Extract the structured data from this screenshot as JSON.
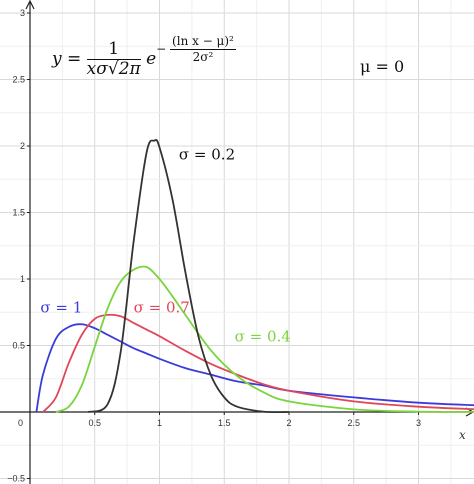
{
  "chart_data": {
    "type": "line",
    "title": "",
    "xlabel": "x",
    "ylabel": "",
    "xlim": [
      -0.25,
      3.45
    ],
    "ylim": [
      -0.5,
      3.05
    ],
    "grid": true,
    "x_ticks": [
      0.5,
      1,
      1.5,
      2,
      2.5,
      3
    ],
    "x_tick_labels": [
      "0.5",
      "1",
      "1.5",
      "2",
      "2.5",
      "3"
    ],
    "y_ticks": [
      -0.5,
      0.5,
      1,
      1.5,
      2,
      2.5,
      3
    ],
    "y_tick_labels": [
      "−0.5",
      "0.5",
      "1",
      "1.5",
      "2",
      "2.5",
      "3"
    ],
    "origin_label": "0",
    "mu": 0,
    "mu_label": "μ = 0",
    "formula": {
      "lhs": "y =",
      "coef_num": "1",
      "coef_den": "xσ√2π",
      "base": "e",
      "exp_sign": "−",
      "exp_num": "(ln x − μ)²",
      "exp_den": "2σ²"
    },
    "series": [
      {
        "name": "σ = 1",
        "sigma": 1,
        "color": "#3b3bdc",
        "points": [
          [
            0.05,
            0.004
          ],
          [
            0.1,
            0.28
          ],
          [
            0.2,
            0.55
          ],
          [
            0.3,
            0.64
          ],
          [
            0.4,
            0.66
          ],
          [
            0.5,
            0.63
          ],
          [
            0.6,
            0.58
          ],
          [
            0.7,
            0.53
          ],
          [
            0.8,
            0.48
          ],
          [
            0.9,
            0.44
          ],
          [
            1.0,
            0.4
          ],
          [
            1.2,
            0.33
          ],
          [
            1.4,
            0.28
          ],
          [
            1.6,
            0.23
          ],
          [
            1.8,
            0.2
          ],
          [
            2.0,
            0.16
          ],
          [
            2.5,
            0.11
          ],
          [
            3.0,
            0.07
          ],
          [
            3.45,
            0.05
          ]
        ]
      },
      {
        "name": "σ = 0.7",
        "sigma": 0.7,
        "color": "#e0465a",
        "points": [
          [
            0.1,
            0.0
          ],
          [
            0.2,
            0.11
          ],
          [
            0.3,
            0.37
          ],
          [
            0.4,
            0.58
          ],
          [
            0.5,
            0.7
          ],
          [
            0.6,
            0.73
          ],
          [
            0.7,
            0.72
          ],
          [
            0.8,
            0.67
          ],
          [
            0.9,
            0.62
          ],
          [
            1.0,
            0.57
          ],
          [
            1.2,
            0.46
          ],
          [
            1.4,
            0.36
          ],
          [
            1.6,
            0.28
          ],
          [
            1.8,
            0.21
          ],
          [
            2.0,
            0.16
          ],
          [
            2.5,
            0.08
          ],
          [
            3.0,
            0.04
          ],
          [
            3.45,
            0.02
          ]
        ]
      },
      {
        "name": "σ = 0.4",
        "sigma": 0.4,
        "color": "#7ad43c",
        "points": [
          [
            0.2,
            0.0
          ],
          [
            0.3,
            0.04
          ],
          [
            0.4,
            0.2
          ],
          [
            0.5,
            0.49
          ],
          [
            0.6,
            0.78
          ],
          [
            0.7,
            0.98
          ],
          [
            0.8,
            1.07
          ],
          [
            0.9,
            1.09
          ],
          [
            1.0,
            1.0
          ],
          [
            1.1,
            0.87
          ],
          [
            1.2,
            0.73
          ],
          [
            1.4,
            0.46
          ],
          [
            1.6,
            0.27
          ],
          [
            1.8,
            0.15
          ],
          [
            2.0,
            0.08
          ],
          [
            2.5,
            0.02
          ],
          [
            3.0,
            0.003
          ],
          [
            3.45,
            0.001
          ]
        ]
      },
      {
        "name": "σ = 0.2",
        "sigma": 0.2,
        "color": "#333333",
        "points": [
          [
            0.45,
            0.0
          ],
          [
            0.6,
            0.06
          ],
          [
            0.7,
            0.45
          ],
          [
            0.8,
            1.28
          ],
          [
            0.9,
            1.95
          ],
          [
            0.96,
            2.04
          ],
          [
            1.0,
            1.99
          ],
          [
            1.1,
            1.6
          ],
          [
            1.2,
            1.05
          ],
          [
            1.3,
            0.57
          ],
          [
            1.4,
            0.27
          ],
          [
            1.5,
            0.11
          ],
          [
            1.6,
            0.04
          ],
          [
            1.8,
            0.003
          ],
          [
            2.0,
            0.0
          ]
        ]
      }
    ],
    "annotations": [
      {
        "text": "σ = 0.2",
        "series": "σ = 0.2",
        "at": [
          1.15,
          1.9
        ]
      },
      {
        "text": "σ = 1",
        "series": "σ = 1",
        "at": [
          0.08,
          0.75
        ]
      },
      {
        "text": "σ = 0.7",
        "series": "σ = 0.7",
        "at": [
          0.8,
          0.75
        ]
      },
      {
        "text": "σ = 0.4",
        "series": "σ = 0.4",
        "at": [
          1.58,
          0.53
        ]
      }
    ]
  }
}
